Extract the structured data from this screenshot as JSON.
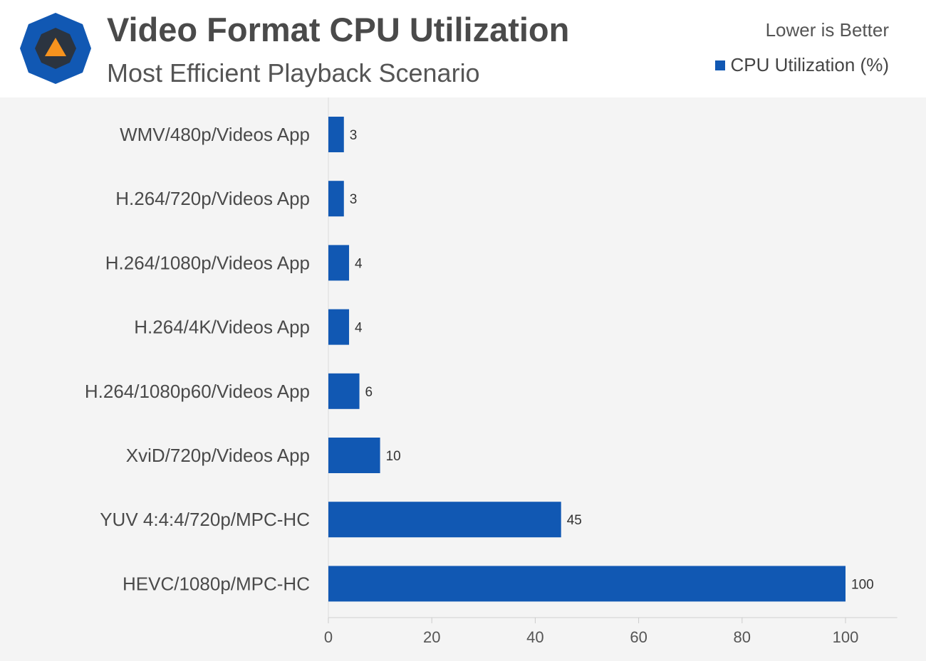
{
  "header": {
    "title": "Video Format CPU Utilization",
    "subtitle": "Most Efficient Playback Scenario",
    "note": "Lower is Better",
    "legend_label": "CPU Utilization (%)",
    "logo_icon": "techspot-logo-icon"
  },
  "colors": {
    "bar": "#1158b3",
    "logo_outer": "#1158b3",
    "logo_inner": "#2b3440",
    "logo_triangle": "#f7931e"
  },
  "chart_data": {
    "type": "bar",
    "orientation": "horizontal",
    "categories": [
      "WMV/480p/Videos App",
      "H.264/720p/Videos App",
      "H.264/1080p/Videos App",
      "H.264/4K/Videos App",
      "H.264/1080p60/Videos App",
      "XviD/720p/Videos App",
      "YUV 4:4:4/720p/MPC-HC",
      "HEVC/1080p/MPC-HC"
    ],
    "series": [
      {
        "name": "CPU Utilization (%)",
        "values": [
          3,
          3,
          4,
          4,
          6,
          10,
          45,
          100
        ]
      }
    ],
    "title": "Video Format CPU Utilization",
    "subtitle": "Most Efficient Playback Scenario",
    "xlim": [
      0,
      110
    ],
    "xticks": [
      0,
      20,
      40,
      60,
      80,
      100
    ],
    "grid": true,
    "legend_position": "top-right"
  }
}
